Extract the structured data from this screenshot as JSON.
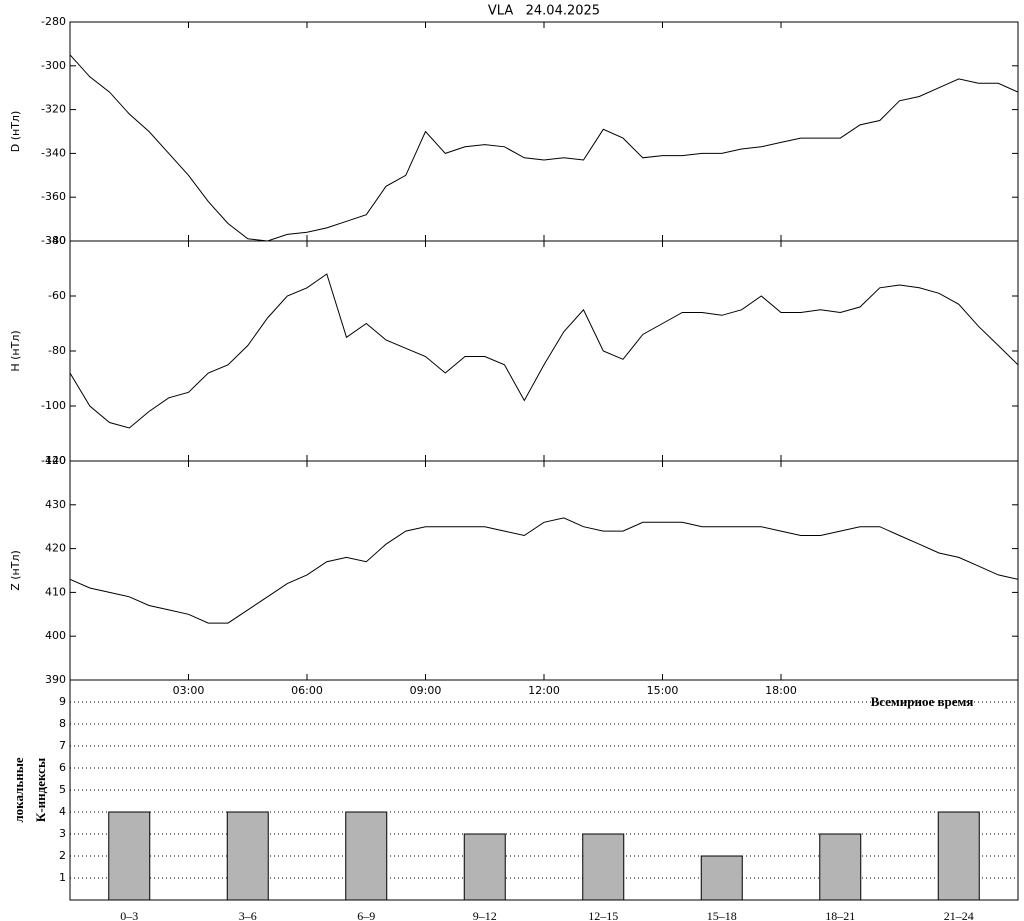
{
  "chart_data": [
    {
      "type": "line",
      "title": "VLA   24.04.2025",
      "y_label": "D (нТл)",
      "x": [
        0,
        0.5,
        1,
        1.5,
        2,
        2.5,
        3,
        3.5,
        4,
        4.5,
        5,
        5.5,
        6,
        6.5,
        7,
        7.5,
        8,
        8.5,
        9,
        9.5,
        10,
        10.5,
        11,
        11.5,
        12,
        12.5,
        13,
        13.5,
        14,
        14.5,
        15,
        15.5,
        16,
        16.5,
        17,
        17.5,
        18,
        18.5,
        19,
        19.5,
        20,
        20.5,
        21,
        21.5,
        22,
        22.5,
        23,
        23.5,
        24
      ],
      "series": [
        {
          "color": "#000000",
          "values": [
            -295,
            -305,
            -312,
            -322,
            -330,
            -340,
            -350,
            -362,
            -372,
            -379,
            -380,
            -377,
            -376,
            -374,
            -371,
            -368,
            -355,
            -350,
            -330,
            -340,
            -337,
            -336,
            -337,
            -342,
            -343,
            -342,
            -343,
            -329,
            -333,
            -342,
            -341,
            -341,
            -340,
            -340,
            -338,
            -337,
            -335,
            -333,
            -333,
            -333,
            -327,
            -325,
            -316,
            -314,
            -310,
            -306,
            -308,
            -308,
            -312
          ]
        }
      ],
      "xlim": [
        0,
        24
      ],
      "ylim": [
        -380,
        -280
      ],
      "yticks": [
        -380,
        -360,
        -340,
        -320,
        -300,
        -280
      ]
    },
    {
      "type": "line",
      "y_label": "H (нТл)",
      "x": [
        0,
        0.5,
        1,
        1.5,
        2,
        2.5,
        3,
        3.5,
        4,
        4.5,
        5,
        5.5,
        6,
        6.5,
        7,
        7.5,
        8,
        8.5,
        9,
        9.5,
        10,
        10.5,
        11,
        11.5,
        12,
        12.5,
        13,
        13.5,
        14,
        14.5,
        15,
        15.5,
        16,
        16.5,
        17,
        17.5,
        18,
        18.5,
        19,
        19.5,
        20,
        20.5,
        21,
        21.5,
        22,
        22.5,
        23,
        23.5,
        24
      ],
      "series": [
        {
          "color": "#000000",
          "values": [
            -88,
            -100,
            -106,
            -108,
            -102,
            -97,
            -95,
            -88,
            -85,
            -78,
            -68,
            -60,
            -57,
            -52,
            -75,
            -70,
            -76,
            -79,
            -82,
            -88,
            -82,
            -82,
            -85,
            -98,
            -85,
            -73,
            -65,
            -80,
            -83,
            -74,
            -70,
            -66,
            -66,
            -67,
            -65,
            -60,
            -66,
            -66,
            -65,
            -66,
            -64,
            -57,
            -56,
            -57,
            -59,
            -63,
            -71,
            -78,
            -85
          ]
        }
      ],
      "xlim": [
        0,
        24
      ],
      "ylim": [
        -120,
        -40
      ],
      "yticks": [
        -120,
        -100,
        -80,
        -60,
        -40
      ]
    },
    {
      "type": "line",
      "y_label": "Z (нТл)",
      "x_label": "Всемирное время",
      "x": [
        0,
        0.5,
        1,
        1.5,
        2,
        2.5,
        3,
        3.5,
        4,
        4.5,
        5,
        5.5,
        6,
        6.5,
        7,
        7.5,
        8,
        8.5,
        9,
        9.5,
        10,
        10.5,
        11,
        11.5,
        12,
        12.5,
        13,
        13.5,
        14,
        14.5,
        15,
        15.5,
        16,
        16.5,
        17,
        17.5,
        18,
        18.5,
        19,
        19.5,
        20,
        20.5,
        21,
        21.5,
        22,
        22.5,
        23,
        23.5,
        24
      ],
      "series": [
        {
          "color": "#000000",
          "values": [
            413,
            411,
            410,
            409,
            407,
            406,
            405,
            403,
            403,
            406,
            409,
            412,
            414,
            417,
            418,
            417,
            421,
            424,
            425,
            425,
            425,
            425,
            424,
            423,
            426,
            427,
            425,
            424,
            424,
            426,
            426,
            426,
            425,
            425,
            425,
            425,
            424,
            423,
            423,
            424,
            425,
            425,
            423,
            421,
            419,
            418,
            416,
            414,
            413
          ]
        }
      ],
      "xlim": [
        0,
        24
      ],
      "ylim": [
        390,
        440
      ],
      "yticks": [
        390,
        400,
        410,
        420,
        430,
        440
      ],
      "xticks": [
        {
          "value": 3,
          "label": "03:00"
        },
        {
          "value": 6,
          "label": "06:00"
        },
        {
          "value": 9,
          "label": "09:00"
        },
        {
          "value": 12,
          "label": "12:00"
        },
        {
          "value": 15,
          "label": "15:00"
        },
        {
          "value": 18,
          "label": "18:00"
        }
      ]
    },
    {
      "type": "bar",
      "y_label": [
        "локальные",
        "К-индексы"
      ],
      "categories": [
        "0–3",
        "3–6",
        "6–9",
        "9–12",
        "12–15",
        "15–18",
        "18–21",
        "21–24"
      ],
      "values": [
        4,
        4,
        4,
        3,
        3,
        2,
        3,
        4
      ],
      "color": "#b4b4b4",
      "ylim": [
        0,
        10
      ],
      "yticks": [
        1,
        2,
        3,
        4,
        5,
        6,
        7,
        8,
        9
      ],
      "grid": true
    }
  ]
}
